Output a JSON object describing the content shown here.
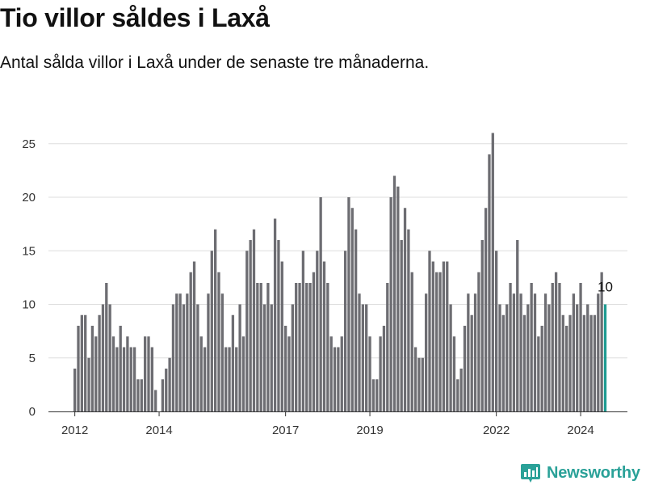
{
  "header": {
    "title": "Tio villor såldes i Laxå",
    "subtitle": "Antal sålda villor i Laxå under de senaste tre månaderna."
  },
  "brand": {
    "name": "Newsworthy",
    "icon": "newsworthy-logo-icon",
    "color": "#2aa198"
  },
  "colors": {
    "bar": "#6d6d72",
    "highlight": "#1f9c93",
    "grid": "#dddddd",
    "axis": "#333333"
  },
  "chart_data": {
    "type": "bar",
    "title": "Tio villor såldes i Laxå",
    "subtitle": "Antal sålda villor i Laxå under de senaste tre månaderna.",
    "xlabel": "",
    "ylabel": "",
    "ylim": [
      0,
      27
    ],
    "yticks": [
      0,
      5,
      10,
      15,
      20,
      25
    ],
    "x_start": "2012-01",
    "frequency": "monthly",
    "xticks": [
      "2012",
      "2014",
      "2017",
      "2019",
      "2022",
      "2024"
    ],
    "grid": true,
    "annotation": {
      "text": "10",
      "target": "last"
    },
    "series": [
      {
        "values": [
          4,
          8,
          9,
          9,
          5,
          8,
          7,
          9,
          10,
          12,
          10,
          7,
          6,
          8,
          6,
          7,
          6,
          6,
          3,
          3,
          7,
          7,
          6,
          2,
          0,
          3,
          4,
          5,
          10,
          11,
          11,
          10,
          11,
          13,
          14,
          10,
          7,
          6,
          11,
          15,
          17,
          13,
          11,
          6,
          6,
          9,
          6,
          10,
          7,
          15,
          16,
          17,
          12,
          12,
          10,
          12,
          10,
          18,
          16,
          14,
          8,
          7,
          10,
          12,
          12,
          15,
          12,
          12,
          13,
          15,
          20,
          14,
          12,
          7,
          6,
          6,
          7,
          15,
          20,
          19,
          17,
          11,
          10,
          10,
          7,
          3,
          3,
          7,
          8,
          12,
          20,
          22,
          21,
          16,
          19,
          17,
          13,
          6,
          5,
          5,
          11,
          15,
          14,
          13,
          13,
          14,
          14,
          10,
          7,
          3,
          4,
          8,
          11,
          9,
          11,
          13,
          16,
          19,
          24,
          26,
          15,
          10,
          9,
          10,
          12,
          11,
          16,
          11,
          9,
          10,
          12,
          11,
          7,
          8,
          11,
          10,
          12,
          13,
          12,
          9,
          8,
          9,
          11,
          10,
          12,
          9,
          10,
          9,
          9,
          11,
          13,
          10
        ]
      }
    ]
  }
}
